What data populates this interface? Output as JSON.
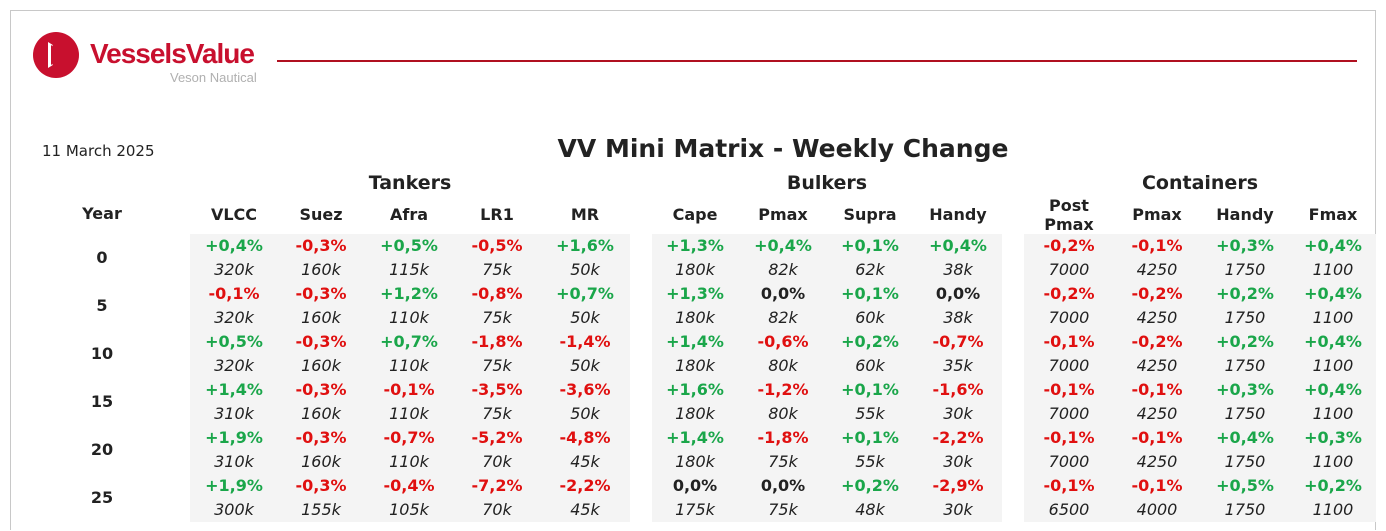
{
  "header": {
    "brand": "VesselsValue",
    "sub_brand": "Veson Nautical",
    "date": "11 March 2025",
    "title": "VV Mini Matrix - Weekly Change",
    "year_label": "Year"
  },
  "colors": {
    "positive": "#1aa64a",
    "negative": "#e01010",
    "brand": "#c8102e"
  },
  "groups": [
    {
      "name": "Tankers",
      "columns": [
        "VLCC",
        "Suez",
        "Afra",
        "LR1",
        "MR"
      ]
    },
    {
      "name": "Bulkers",
      "columns": [
        "Cape",
        "Pmax",
        "Supra",
        "Handy"
      ]
    },
    {
      "name": "Containers",
      "columns": [
        "Post Pmax",
        "Pmax",
        "Handy",
        "Fmax"
      ]
    }
  ],
  "rows": [
    {
      "year": "0",
      "changes": [
        "+0,4%",
        "-0,3%",
        "+0,5%",
        "-0,5%",
        "+1,6%",
        "+1,3%",
        "+0,4%",
        "+0,1%",
        "+0,4%",
        "-0,2%",
        "-0,1%",
        "+0,3%",
        "+0,4%"
      ],
      "values": [
        "320k",
        "160k",
        "115k",
        "75k",
        "50k",
        "180k",
        "82k",
        "62k",
        "38k",
        "7000",
        "4250",
        "1750",
        "1100"
      ]
    },
    {
      "year": "5",
      "changes": [
        "-0,1%",
        "-0,3%",
        "+1,2%",
        "-0,8%",
        "+0,7%",
        "+1,3%",
        "0,0%",
        "+0,1%",
        "0,0%",
        "-0,2%",
        "-0,2%",
        "+0,2%",
        "+0,4%"
      ],
      "values": [
        "320k",
        "160k",
        "110k",
        "75k",
        "50k",
        "180k",
        "82k",
        "60k",
        "38k",
        "7000",
        "4250",
        "1750",
        "1100"
      ]
    },
    {
      "year": "10",
      "changes": [
        "+0,5%",
        "-0,3%",
        "+0,7%",
        "-1,8%",
        "-1,4%",
        "+1,4%",
        "-0,6%",
        "+0,2%",
        "-0,7%",
        "-0,1%",
        "-0,2%",
        "+0,2%",
        "+0,4%"
      ],
      "values": [
        "320k",
        "160k",
        "110k",
        "75k",
        "50k",
        "180k",
        "80k",
        "60k",
        "35k",
        "7000",
        "4250",
        "1750",
        "1100"
      ]
    },
    {
      "year": "15",
      "changes": [
        "+1,4%",
        "-0,3%",
        "-0,1%",
        "-3,5%",
        "-3,6%",
        "+1,6%",
        "-1,2%",
        "+0,1%",
        "-1,6%",
        "-0,1%",
        "-0,1%",
        "+0,3%",
        "+0,4%"
      ],
      "values": [
        "310k",
        "160k",
        "110k",
        "75k",
        "50k",
        "180k",
        "80k",
        "55k",
        "30k",
        "7000",
        "4250",
        "1750",
        "1100"
      ]
    },
    {
      "year": "20",
      "changes": [
        "+1,9%",
        "-0,3%",
        "-0,7%",
        "-5,2%",
        "-4,8%",
        "+1,4%",
        "-1,8%",
        "+0,1%",
        "-2,2%",
        "-0,1%",
        "-0,1%",
        "+0,4%",
        "+0,3%"
      ],
      "values": [
        "310k",
        "160k",
        "110k",
        "70k",
        "45k",
        "180k",
        "75k",
        "55k",
        "30k",
        "7000",
        "4250",
        "1750",
        "1100"
      ]
    },
    {
      "year": "25",
      "changes": [
        "+1,9%",
        "-0,3%",
        "-0,4%",
        "-7,2%",
        "-2,2%",
        "0,0%",
        "0,0%",
        "+0,2%",
        "-2,9%",
        "-0,1%",
        "-0,1%",
        "+0,5%",
        "+0,2%"
      ],
      "values": [
        "300k",
        "155k",
        "105k",
        "70k",
        "45k",
        "175k",
        "75k",
        "48k",
        "30k",
        "6500",
        "4000",
        "1750",
        "1100"
      ]
    }
  ]
}
